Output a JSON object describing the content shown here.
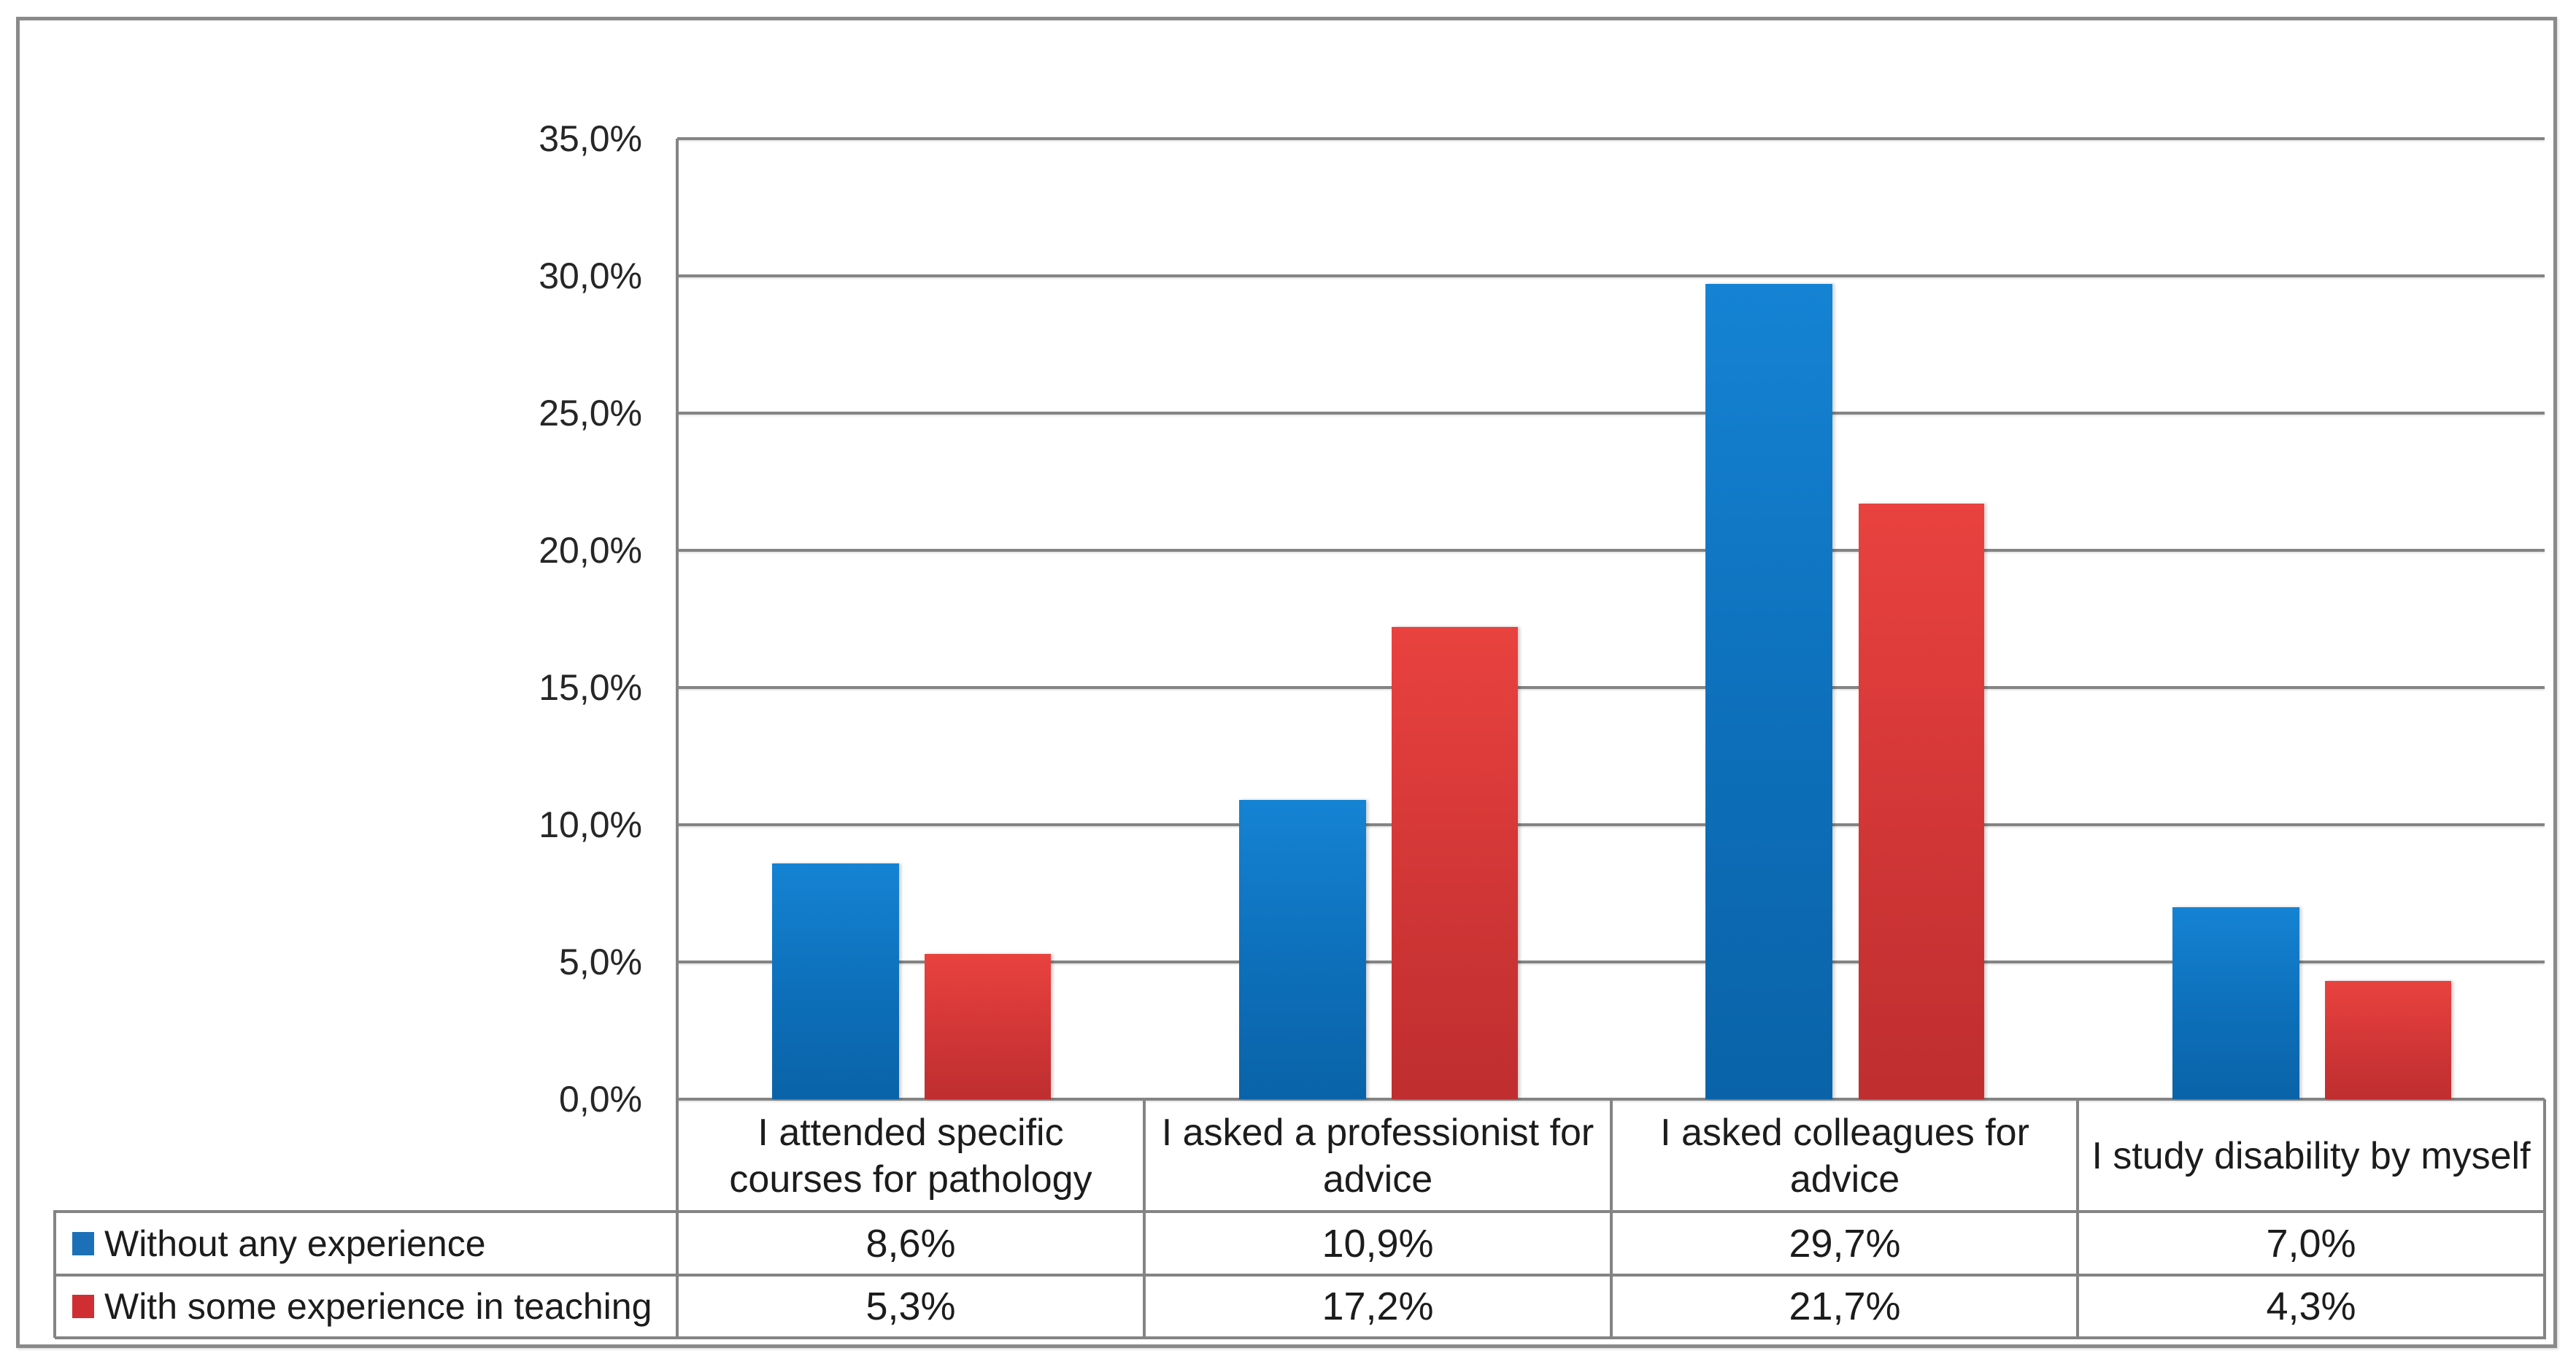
{
  "chart_data": {
    "type": "bar",
    "title": "",
    "categories": [
      "I attended specific\ncourses for pathology",
      "I asked a professionist for\nadvice",
      "I asked colleagues for\nadvice",
      "I study disability by myself"
    ],
    "series": [
      {
        "name": "Without any experience",
        "color": "#1c70b8",
        "values": [
          8.6,
          10.9,
          29.7,
          7.0
        ],
        "value_labels": [
          "8,6%",
          "10,9%",
          "29,7%",
          "7,0%"
        ]
      },
      {
        "name": "With some experience in teaching",
        "color": "#cf2f32",
        "values": [
          5.3,
          17.2,
          21.7,
          4.3
        ],
        "value_labels": [
          "5,3%",
          "17,2%",
          "21,7%",
          "4,3%"
        ]
      }
    ],
    "ylim": [
      0,
      35
    ],
    "ytick_step": 5,
    "yticks": [
      "35,0%",
      "30,0%",
      "25,0%",
      "20,0%",
      "15,0%",
      "10,0%",
      "5,0%",
      "0,0%"
    ],
    "grid": true,
    "legend_position": "data-table-left"
  }
}
